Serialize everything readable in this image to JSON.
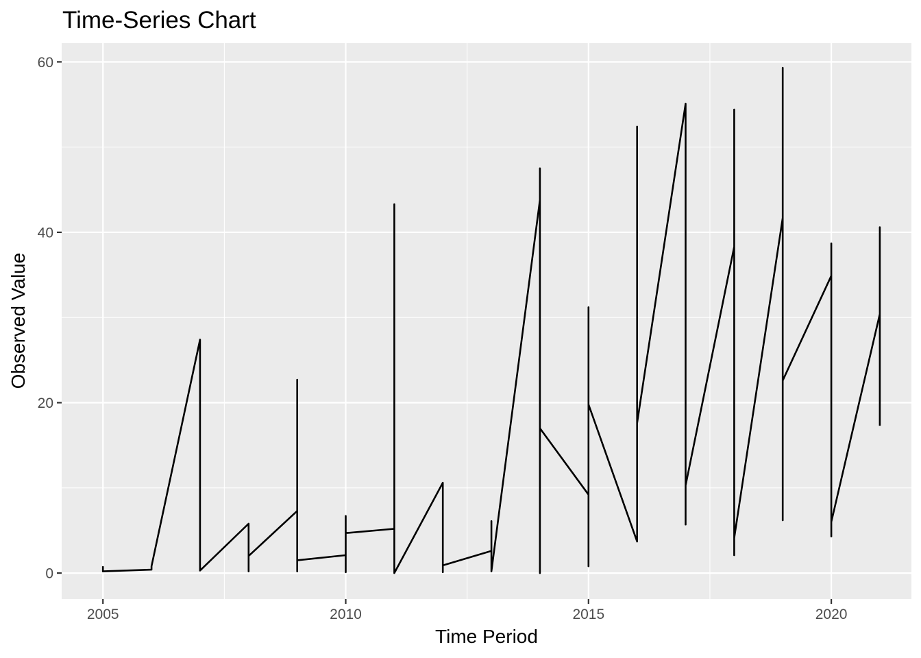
{
  "chart_data": {
    "type": "line",
    "title": "Time-Series Chart",
    "xlabel": "Time Period",
    "ylabel": "Observed Value",
    "xlim": [
      2004.15,
      2021.65
    ],
    "ylim": [
      -3.05,
      62.2
    ],
    "x_ticks": [
      2005,
      2010,
      2015,
      2020
    ],
    "y_ticks": [
      0,
      20,
      40,
      60
    ],
    "x_minor_ticks": [
      2007.5,
      2012.5,
      2017.5
    ],
    "y_minor_ticks": [
      10,
      30,
      50
    ],
    "grid": true,
    "legend": "none",
    "colors": {
      "panel_background": "#ebebeb",
      "grid_line": "#ffffff",
      "series_line": "#000000",
      "tick_mark": "#333333"
    },
    "series": [
      {
        "points": [
          [
            2005,
            0.8
          ],
          [
            2005,
            0.2
          ],
          [
            2006,
            0.4
          ],
          [
            2006,
            0.8
          ],
          [
            2007,
            27.4
          ],
          [
            2007,
            0.3
          ],
          [
            2008,
            5.8
          ],
          [
            2008,
            0.2
          ],
          [
            2008,
            2.0
          ],
          [
            2009,
            7.3
          ],
          [
            2009,
            22.7
          ],
          [
            2009,
            0.2
          ],
          [
            2009,
            1.5
          ],
          [
            2010,
            2.1
          ],
          [
            2010,
            0.1
          ],
          [
            2010,
            6.7
          ],
          [
            2010,
            4.7
          ],
          [
            2011,
            5.2
          ],
          [
            2011,
            43.3
          ],
          [
            2011,
            0.0
          ],
          [
            2012,
            10.6
          ],
          [
            2012,
            0.1
          ],
          [
            2012,
            0.9
          ],
          [
            2013,
            2.6
          ],
          [
            2013,
            6.1
          ],
          [
            2013,
            0.2
          ],
          [
            2014,
            43.8
          ],
          [
            2014,
            47.5
          ],
          [
            2014,
            0.0
          ],
          [
            2014,
            17.0
          ],
          [
            2015,
            9.2
          ],
          [
            2015,
            31.2
          ],
          [
            2015,
            0.8
          ],
          [
            2015,
            19.8
          ],
          [
            2016,
            3.7
          ],
          [
            2016,
            52.4
          ],
          [
            2016,
            17.6
          ],
          [
            2017,
            55.1
          ],
          [
            2017,
            5.7
          ],
          [
            2017,
            10.3
          ],
          [
            2018,
            38.3
          ],
          [
            2018,
            54.4
          ],
          [
            2018,
            2.1
          ],
          [
            2018,
            4.1
          ],
          [
            2019,
            41.7
          ],
          [
            2019,
            59.3
          ],
          [
            2019,
            6.2
          ],
          [
            2019,
            22.6
          ],
          [
            2020,
            34.9
          ],
          [
            2020,
            38.7
          ],
          [
            2020,
            4.3
          ],
          [
            2020,
            6.0
          ],
          [
            2021,
            30.4
          ],
          [
            2021,
            40.6
          ],
          [
            2021,
            17.3
          ]
        ]
      }
    ]
  }
}
